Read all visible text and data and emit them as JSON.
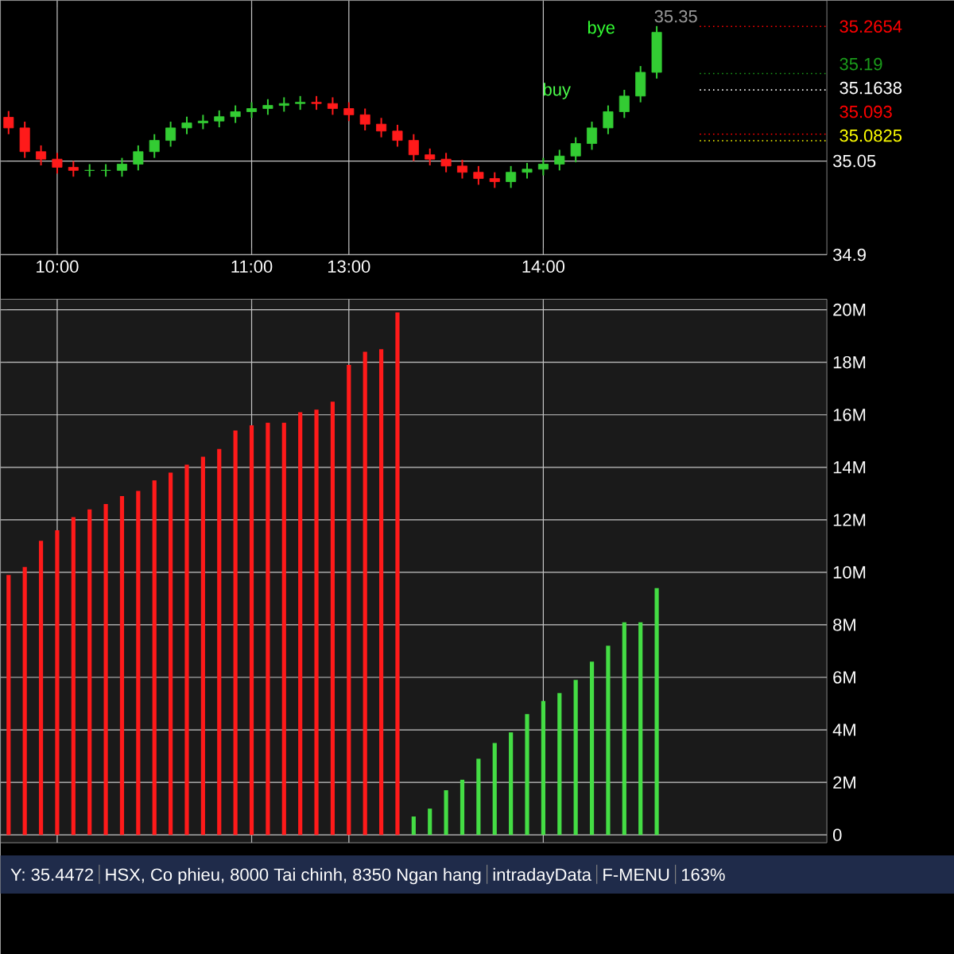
{
  "chart_data": [
    {
      "type": "candlestick",
      "categories": [
        null,
        null,
        null,
        "10:00",
        null,
        null,
        null,
        null,
        null,
        null,
        null,
        null,
        null,
        null,
        null,
        "11:00",
        null,
        null,
        null,
        null,
        null,
        "13:00",
        null,
        null,
        null,
        null,
        null,
        null,
        null,
        null,
        null,
        null,
        null,
        "14:00",
        null,
        null,
        null,
        null,
        null,
        null,
        null,
        null,
        null,
        null,
        null,
        null,
        null,
        null,
        null,
        null,
        null
      ],
      "ohlc": [
        [
          35.12,
          35.13,
          35.093,
          35.103
        ],
        [
          35.103,
          35.113,
          35.055,
          35.065
        ],
        [
          35.065,
          35.075,
          35.043,
          35.053
        ],
        [
          35.053,
          35.063,
          35.03,
          35.04
        ],
        [
          35.04,
          35.05,
          35.025,
          35.035
        ],
        [
          35.035,
          35.045,
          35.025,
          35.035
        ],
        [
          35.035,
          35.045,
          35.025,
          35.035
        ],
        [
          35.035,
          35.055,
          35.025,
          35.045
        ],
        [
          35.045,
          35.075,
          35.035,
          35.065
        ],
        [
          35.065,
          35.093,
          35.055,
          35.083
        ],
        [
          35.083,
          35.113,
          35.073,
          35.103
        ],
        [
          35.103,
          35.121,
          35.093,
          35.111
        ],
        [
          35.111,
          35.124,
          35.101,
          35.114
        ],
        [
          35.114,
          35.131,
          35.104,
          35.121
        ],
        [
          35.121,
          35.139,
          35.111,
          35.129
        ],
        [
          35.129,
          35.144,
          35.119,
          35.134
        ],
        [
          35.134,
          35.149,
          35.124,
          35.139
        ],
        [
          35.139,
          35.152,
          35.129,
          35.142
        ],
        [
          35.142,
          35.154,
          35.132,
          35.144
        ],
        [
          35.144,
          35.154,
          35.132,
          35.142
        ],
        [
          35.142,
          35.152,
          35.124,
          35.134
        ],
        [
          35.134,
          35.144,
          35.114,
          35.124
        ],
        [
          35.124,
          35.134,
          35.099,
          35.109
        ],
        [
          35.109,
          35.119,
          35.088,
          35.098
        ],
        [
          35.098,
          35.108,
          35.073,
          35.083
        ],
        [
          35.083,
          35.093,
          35.05,
          35.06
        ],
        [
          35.06,
          35.07,
          35.043,
          35.053
        ],
        [
          35.053,
          35.063,
          35.032,
          35.042
        ],
        [
          35.042,
          35.052,
          35.022,
          35.032
        ],
        [
          35.032,
          35.042,
          35.012,
          35.022
        ],
        [
          35.022,
          35.032,
          35.007,
          35.017
        ],
        [
          35.017,
          35.042,
          35.007,
          35.032
        ],
        [
          35.032,
          35.047,
          35.022,
          35.037
        ],
        [
          35.037,
          35.055,
          35.027,
          35.045
        ],
        [
          35.045,
          35.068,
          35.035,
          35.058
        ],
        [
          35.058,
          35.088,
          35.048,
          35.078
        ],
        [
          35.078,
          35.113,
          35.068,
          35.103
        ],
        [
          35.103,
          35.139,
          35.093,
          35.129
        ],
        [
          35.129,
          35.164,
          35.119,
          35.154
        ],
        [
          35.154,
          35.202,
          35.144,
          35.192
        ],
        [
          35.192,
          35.266,
          35.182,
          35.256
        ],
        null,
        null,
        null,
        null,
        null,
        null,
        null,
        null,
        null,
        null
      ],
      "ylim": [
        34.9,
        35.307
      ],
      "yticks": [
        {
          "value": 34.9,
          "label": "34.9"
        },
        {
          "value": 35.05,
          "label": "35.05"
        }
      ],
      "grid": true,
      "ref_lines": [
        {
          "axis": "y",
          "value": 35.2654,
          "label": "35.2654",
          "color": "#ff0000"
        },
        {
          "axis": "y",
          "value": 35.19,
          "label": "35.19",
          "color": "#1a9a1a"
        },
        {
          "axis": "y",
          "value": 35.1638,
          "label": "35.1638",
          "color": "#ffffff"
        },
        {
          "axis": "y",
          "value": 35.093,
          "label": "35.093",
          "color": "#ff0000"
        },
        {
          "axis": "y",
          "value": 35.0825,
          "label": "35.0825",
          "color": "#ffff00"
        }
      ],
      "annotations": [
        "35.35",
        "bye",
        "buy"
      ]
    },
    {
      "type": "bar",
      "categories": [
        null,
        null,
        null,
        null,
        null,
        null,
        null,
        null,
        null,
        null,
        null,
        null,
        null,
        null,
        null,
        null,
        null,
        null,
        null,
        null,
        null,
        null,
        null,
        null,
        null,
        null,
        null,
        null,
        null,
        null,
        null,
        null,
        null,
        null,
        null,
        null,
        null,
        null,
        null,
        null,
        null,
        null,
        null,
        null,
        null,
        null,
        null,
        null,
        null,
        null,
        null
      ],
      "values": [
        9.9,
        10.2,
        11.2,
        11.6,
        12.1,
        12.4,
        12.6,
        12.9,
        13.1,
        13.5,
        13.8,
        14.1,
        14.4,
        14.7,
        15.4,
        15.6,
        15.7,
        15.7,
        16.1,
        16.2,
        16.5,
        17.9,
        18.4,
        18.5,
        19.9,
        0.7,
        1.0,
        1.7,
        2.1,
        2.9,
        3.5,
        3.9,
        4.6,
        5.1,
        5.4,
        5.9,
        6.6,
        7.2,
        8.1,
        8.1,
        9.4,
        null,
        null,
        null,
        null,
        null,
        null,
        null,
        null,
        null,
        null
      ],
      "colors": [
        "#ff1a1a",
        "#ff1a1a",
        "#ff1a1a",
        "#ff1a1a",
        "#ff1a1a",
        "#ff1a1a",
        "#ff1a1a",
        "#ff1a1a",
        "#ff1a1a",
        "#ff1a1a",
        "#ff1a1a",
        "#ff1a1a",
        "#ff1a1a",
        "#ff1a1a",
        "#ff1a1a",
        "#ff1a1a",
        "#ff1a1a",
        "#ff1a1a",
        "#ff1a1a",
        "#ff1a1a",
        "#ff1a1a",
        "#ff1a1a",
        "#ff1a1a",
        "#ff1a1a",
        "#ff1a1a",
        "#44dd44",
        "#44dd44",
        "#44dd44",
        "#44dd44",
        "#44dd44",
        "#44dd44",
        "#44dd44",
        "#44dd44",
        "#44dd44",
        "#44dd44",
        "#44dd44",
        "#44dd44",
        "#44dd44",
        "#44dd44",
        "#44dd44",
        "#44dd44",
        null,
        null,
        null,
        null,
        null,
        null,
        null,
        null,
        null,
        null
      ],
      "ylim": [
        -0.3,
        20.4
      ],
      "yticks": [
        0,
        {
          "value": 2,
          "label": "2M"
        },
        {
          "value": 4,
          "label": "4M"
        },
        {
          "value": 6,
          "label": "6M"
        },
        {
          "value": 8,
          "label": "8M"
        },
        {
          "value": 10,
          "label": "10M"
        },
        {
          "value": 12,
          "label": "12M"
        },
        {
          "value": 14,
          "label": "14M"
        },
        {
          "value": 16,
          "label": "16M"
        },
        {
          "value": 18,
          "label": "18M"
        },
        {
          "value": 20,
          "label": "20M"
        }
      ],
      "grid": true,
      "tick_labels": "y",
      "annotations": [
        "Y: 35.4472",
        "HSX, Co phieu, 8000 Tai chinh, 8350 Ngan hang",
        "intradayData",
        "F-MENU",
        "163%"
      ]
    }
  ]
}
